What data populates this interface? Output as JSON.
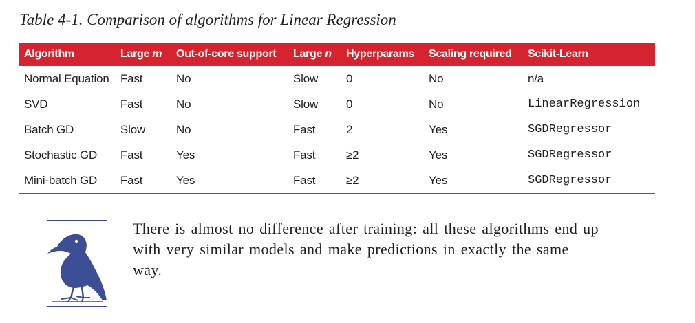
{
  "caption": "Table 4-1. Comparison of algorithms for Linear Regression",
  "table": {
    "headers": {
      "algorithm": "Algorithm",
      "large_m_prefix": "Large ",
      "large_m_var": "m",
      "out_of_core": "Out-of-core support",
      "large_n_prefix": "Large ",
      "large_n_var": "n",
      "hyperparams": "Hyperparams",
      "scaling": "Scaling required",
      "sklearn": "Scikit-Learn"
    },
    "rows": [
      [
        "Normal Equation",
        "Fast",
        "No",
        "Slow",
        "0",
        "No",
        "n/a"
      ],
      [
        "SVD",
        "Fast",
        "No",
        "Slow",
        "0",
        "No",
        "LinearRegression"
      ],
      [
        "Batch GD",
        "Slow",
        "No",
        "Fast",
        "2",
        "Yes",
        "SGDRegressor"
      ],
      [
        "Stochastic GD",
        "Fast",
        "Yes",
        "Fast",
        "≥2",
        "Yes",
        "SGDRegressor"
      ],
      [
        "Mini-batch GD",
        "Fast",
        "Yes",
        "Fast",
        "≥2",
        "Yes",
        "SGDRegressor"
      ]
    ]
  },
  "note": {
    "icon": "crow-icon",
    "text": "There is almost no difference after training: all these algorithms end up with very similar models and make predictions in exactly the same way."
  },
  "colors": {
    "header_bg": "#d5232f",
    "icon_blue": "#3d4d96",
    "text": "#231f20"
  }
}
